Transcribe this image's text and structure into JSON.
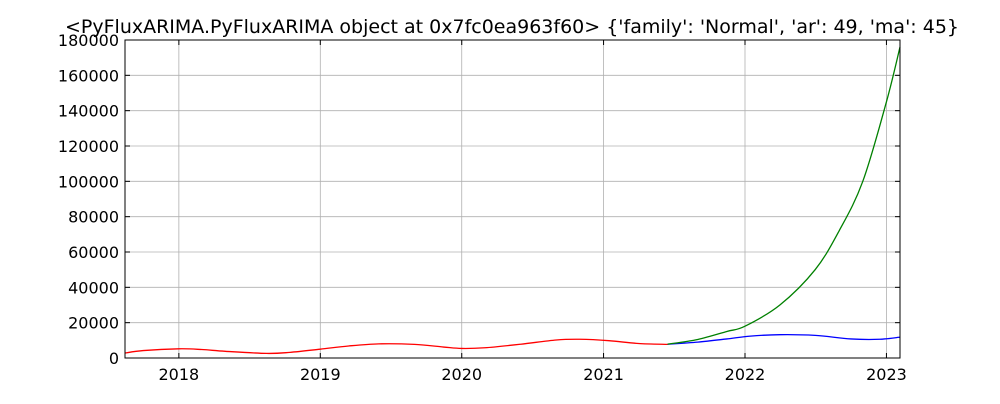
{
  "chart_data": {
    "type": "line",
    "title": "<PyFluxARIMA.PyFluxARIMA object at 0x7fc0ea963f60> {'family': 'Normal', 'ar': 49, 'ma': 45}",
    "xlabel": "",
    "ylabel": "",
    "xlim": [
      "2017-08-15",
      "2023-02-05"
    ],
    "ylim": [
      0,
      180000
    ],
    "grid": true,
    "x_ticks": [
      "2018",
      "2019",
      "2020",
      "2021",
      "2022",
      "2023"
    ],
    "x_tick_dates": [
      "2018-01-01",
      "2019-01-01",
      "2020-01-01",
      "2021-01-01",
      "2022-01-01",
      "2023-01-01"
    ],
    "y_ticks": [
      0,
      20000,
      40000,
      60000,
      80000,
      100000,
      120000,
      140000,
      160000,
      180000
    ],
    "y_tick_labels": [
      "0",
      "20000",
      "40000",
      "60000",
      "80000",
      "100000",
      "120000",
      "140000",
      "160000",
      "180000"
    ],
    "series": [
      {
        "color": "#ff0000",
        "x": [
          "2017-08-15",
          "2017-10-01",
          "2018-01-01",
          "2018-03-01",
          "2018-05-01",
          "2018-08-15",
          "2018-10-15",
          "2019-01-01",
          "2019-03-15",
          "2019-06-01",
          "2019-09-01",
          "2019-11-15",
          "2020-01-01",
          "2020-03-01",
          "2020-06-01",
          "2020-09-01",
          "2020-11-01",
          "2021-01-15",
          "2021-04-01",
          "2021-06-15"
        ],
        "y": [
          2800,
          4200,
          5200,
          4800,
          3800,
          2600,
          3200,
          5000,
          6800,
          8000,
          7700,
          6200,
          5400,
          5800,
          7800,
          10200,
          10600,
          9800,
          8200,
          7700
        ]
      },
      {
        "color": "#0000ff",
        "x": [
          "2021-06-15",
          "2021-09-01",
          "2021-11-15",
          "2022-01-15",
          "2022-04-01",
          "2022-07-01",
          "2022-10-01",
          "2022-12-15",
          "2023-02-05"
        ],
        "y": [
          7800,
          9000,
          10800,
          12400,
          13200,
          12800,
          10800,
          10600,
          11800
        ]
      },
      {
        "color": "#008000",
        "x": [
          "2021-06-15",
          "2021-09-01",
          "2021-11-15",
          "2022-01-01",
          "2022-04-01",
          "2022-07-01",
          "2022-09-01",
          "2022-11-01",
          "2023-01-01",
          "2023-02-05"
        ],
        "y": [
          7800,
          10500,
          15000,
          18000,
          30000,
          50000,
          72000,
          100000,
          145000,
          176000
        ]
      }
    ]
  }
}
